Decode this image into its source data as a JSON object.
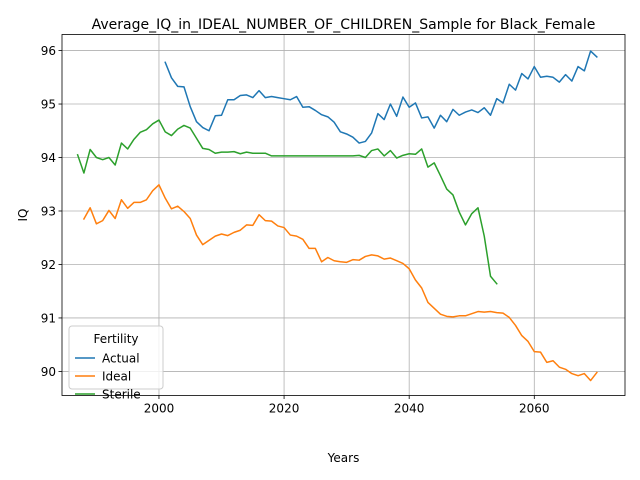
{
  "chart_data": {
    "type": "line",
    "title": "Average_IQ_in_IDEAL_NUMBER_OF_CHILDREN_Sample for Black_Female",
    "xlabel": "Years",
    "ylabel": "IQ",
    "xlim": [
      1984.5,
      2074.5
    ],
    "ylim": [
      89.55,
      96.3
    ],
    "xticks": [
      2000,
      2020,
      2040,
      2060
    ],
    "yticks": [
      90,
      91,
      92,
      93,
      94,
      95,
      96
    ],
    "grid": true,
    "legend": {
      "title": "Fertility",
      "position": "lower-left"
    },
    "series": [
      {
        "name": "Actual",
        "color": "#1f77b4",
        "x": [
          2001,
          2002,
          2003,
          2004,
          2005,
          2006,
          2007,
          2008,
          2009,
          2010,
          2011,
          2012,
          2013,
          2014,
          2015,
          2016,
          2017,
          2018,
          2019,
          2020,
          2021,
          2022,
          2023,
          2024,
          2025,
          2026,
          2027,
          2028,
          2029,
          2030,
          2031,
          2032,
          2033,
          2034,
          2035,
          2036,
          2037,
          2038,
          2039,
          2040,
          2041,
          2042,
          2043,
          2044,
          2045,
          2046,
          2047,
          2048,
          2049,
          2050,
          2051,
          2052,
          2053,
          2054,
          2055,
          2056,
          2057,
          2058,
          2059,
          2060,
          2061,
          2062,
          2063,
          2064,
          2065,
          2066,
          2067,
          2068,
          2069,
          2070
        ],
        "values": [
          95.78,
          95.49,
          95.33,
          95.32,
          94.95,
          94.67,
          94.56,
          94.5,
          94.78,
          94.79,
          95.08,
          95.08,
          95.16,
          95.17,
          95.12,
          95.25,
          95.12,
          95.14,
          95.12,
          95.1,
          95.08,
          95.14,
          94.94,
          94.95,
          94.88,
          94.8,
          94.76,
          94.66,
          94.48,
          94.44,
          94.38,
          94.27,
          94.3,
          94.46,
          94.82,
          94.71,
          95.0,
          94.77,
          95.13,
          94.94,
          95.02,
          94.74,
          94.76,
          94.55,
          94.79,
          94.67,
          94.9,
          94.79,
          94.85,
          94.89,
          94.84,
          94.93,
          94.79,
          95.1,
          95.02,
          95.37,
          95.26,
          95.57,
          95.47,
          95.7,
          95.5,
          95.52,
          95.5,
          95.41,
          95.55,
          95.43,
          95.7,
          95.62,
          95.99,
          95.88
        ]
      },
      {
        "name": "Ideal",
        "color": "#ff7f0e",
        "x": [
          1988,
          1989,
          1990,
          1991,
          1992,
          1993,
          1994,
          1995,
          1996,
          1997,
          1998,
          1999,
          2000,
          2001,
          2002,
          2003,
          2004,
          2005,
          2006,
          2007,
          2008,
          2009,
          2010,
          2011,
          2012,
          2013,
          2014,
          2015,
          2016,
          2017,
          2018,
          2019,
          2020,
          2021,
          2022,
          2023,
          2024,
          2025,
          2026,
          2027,
          2028,
          2029,
          2030,
          2031,
          2032,
          2033,
          2034,
          2035,
          2036,
          2037,
          2038,
          2039,
          2040,
          2041,
          2042,
          2043,
          2044,
          2045,
          2046,
          2047,
          2048,
          2049,
          2050,
          2051,
          2052,
          2053,
          2054,
          2055,
          2056,
          2057,
          2058,
          2059,
          2060,
          2061,
          2062,
          2063,
          2064,
          2065,
          2066,
          2067,
          2068,
          2069,
          2070
        ],
        "values": [
          92.85,
          93.06,
          92.76,
          92.82,
          93.01,
          92.86,
          93.21,
          93.05,
          93.16,
          93.16,
          93.21,
          93.38,
          93.49,
          93.24,
          93.04,
          93.09,
          92.99,
          92.86,
          92.55,
          92.37,
          92.45,
          92.53,
          92.57,
          92.54,
          92.6,
          92.64,
          92.74,
          92.73,
          92.93,
          92.82,
          92.81,
          92.72,
          92.69,
          92.55,
          92.53,
          92.47,
          92.3,
          92.3,
          92.05,
          92.13,
          92.07,
          92.05,
          92.04,
          92.09,
          92.08,
          92.15,
          92.18,
          92.16,
          92.1,
          92.12,
          92.07,
          92.02,
          91.92,
          91.71,
          91.56,
          91.29,
          91.18,
          91.07,
          91.03,
          91.02,
          91.04,
          91.04,
          91.08,
          91.12,
          91.11,
          91.12,
          91.1,
          91.09,
          91.01,
          90.86,
          90.67,
          90.56,
          90.37,
          90.36,
          90.17,
          90.2,
          90.08,
          90.04,
          89.96,
          89.92,
          89.96,
          89.83,
          89.98
        ]
      },
      {
        "name": "Sterile",
        "color": "#2ca02c",
        "x": [
          1987,
          1988,
          1989,
          1990,
          1991,
          1992,
          1993,
          1994,
          1995,
          1996,
          1997,
          1998,
          1999,
          2000,
          2001,
          2002,
          2003,
          2004,
          2005,
          2006,
          2007,
          2008,
          2009,
          2010,
          2011,
          2012,
          2013,
          2014,
          2015,
          2016,
          2017,
          2018,
          2019,
          2020,
          2021,
          2022,
          2023,
          2024,
          2025,
          2026,
          2027,
          2028,
          2029,
          2030,
          2031,
          2032,
          2033,
          2034,
          2035,
          2036,
          2037,
          2038,
          2039,
          2040,
          2041,
          2042,
          2043,
          2044,
          2045,
          2046,
          2047,
          2048,
          2049,
          2050,
          2051,
          2052,
          2053,
          2054
        ],
        "values": [
          94.05,
          93.71,
          94.15,
          94.0,
          93.96,
          94.0,
          93.86,
          94.27,
          94.16,
          94.34,
          94.47,
          94.52,
          94.63,
          94.7,
          94.48,
          94.41,
          94.53,
          94.6,
          94.55,
          94.36,
          94.17,
          94.15,
          94.08,
          94.1,
          94.1,
          94.11,
          94.07,
          94.1,
          94.08,
          94.08,
          94.08,
          94.03,
          94.03,
          94.03,
          94.03,
          94.03,
          94.03,
          94.03,
          94.03,
          94.03,
          94.03,
          94.03,
          94.03,
          94.03,
          94.03,
          94.04,
          94.0,
          94.13,
          94.16,
          94.03,
          94.13,
          93.99,
          94.04,
          94.07,
          94.06,
          94.16,
          93.82,
          93.9,
          93.66,
          93.41,
          93.3,
          92.98,
          92.74,
          92.95,
          93.06,
          92.53,
          91.78,
          91.64
        ]
      }
    ]
  }
}
